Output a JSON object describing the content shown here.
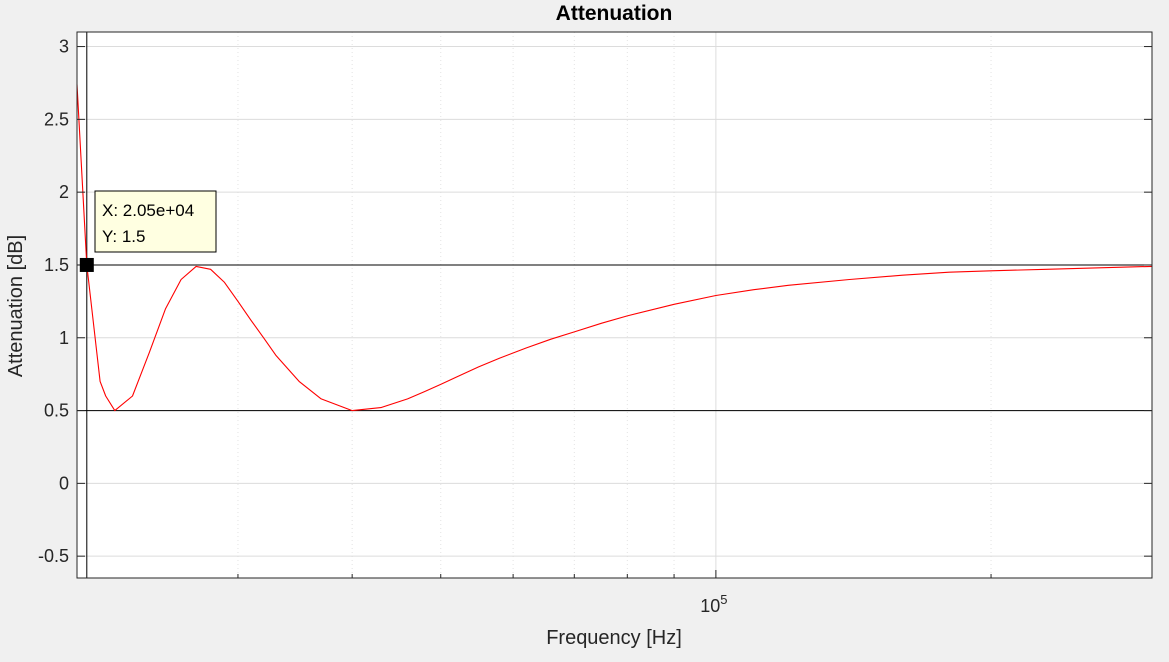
{
  "chart_data": {
    "type": "line",
    "title": "Attenuation",
    "xlabel": "Frequency [Hz]",
    "ylabel": "Attenuation [dB]",
    "x_scale": "log",
    "xlim": [
      20000,
      300000
    ],
    "ylim": [
      -0.65,
      3.1
    ],
    "y_ticks": [
      -0.5,
      0,
      0.5,
      1,
      1.5,
      2,
      2.5,
      3
    ],
    "y_tick_labels": [
      "-0.5",
      "0",
      "0.5",
      "1",
      "1.5",
      "2",
      "2.5",
      "3"
    ],
    "x_tick_labels": [
      {
        "value": 100000,
        "base": "10",
        "exp": "5"
      }
    ],
    "grid": true,
    "series": [
      {
        "color": "#ff0000",
        "x": [
          20000,
          20500,
          21200,
          21500,
          22000,
          23000,
          24000,
          25000,
          26000,
          27000,
          28000,
          29000,
          30000,
          31000,
          32000,
          33000,
          35000,
          37000,
          40000,
          43000,
          46000,
          48000,
          50000,
          52000,
          55000,
          58000,
          62000,
          66000,
          70000,
          75000,
          80000,
          90000,
          100000,
          110000,
          120000,
          140000,
          160000,
          180000,
          200000,
          230000,
          260000,
          300000
        ],
        "y": [
          2.74,
          1.5,
          0.7,
          0.6,
          0.5,
          0.6,
          0.9,
          1.2,
          1.4,
          1.49,
          1.47,
          1.38,
          1.25,
          1.12,
          1.0,
          0.88,
          0.7,
          0.58,
          0.5,
          0.52,
          0.58,
          0.63,
          0.68,
          0.73,
          0.8,
          0.86,
          0.93,
          0.99,
          1.04,
          1.1,
          1.15,
          1.23,
          1.29,
          1.33,
          1.36,
          1.4,
          1.43,
          1.45,
          1.46,
          1.47,
          1.48,
          1.49
        ]
      },
      {
        "color": "#000000",
        "x": [
          20000,
          300000
        ],
        "y": [
          1.5,
          1.5
        ]
      },
      {
        "color": "#000000",
        "x": [
          20000,
          300000
        ],
        "y": [
          0.5,
          0.5
        ]
      }
    ],
    "cursor_x": 20500,
    "datatip": {
      "x": 20500,
      "y": 1.5,
      "x_text": "X: 2.05e+04",
      "y_text": "Y: 1.5"
    }
  }
}
